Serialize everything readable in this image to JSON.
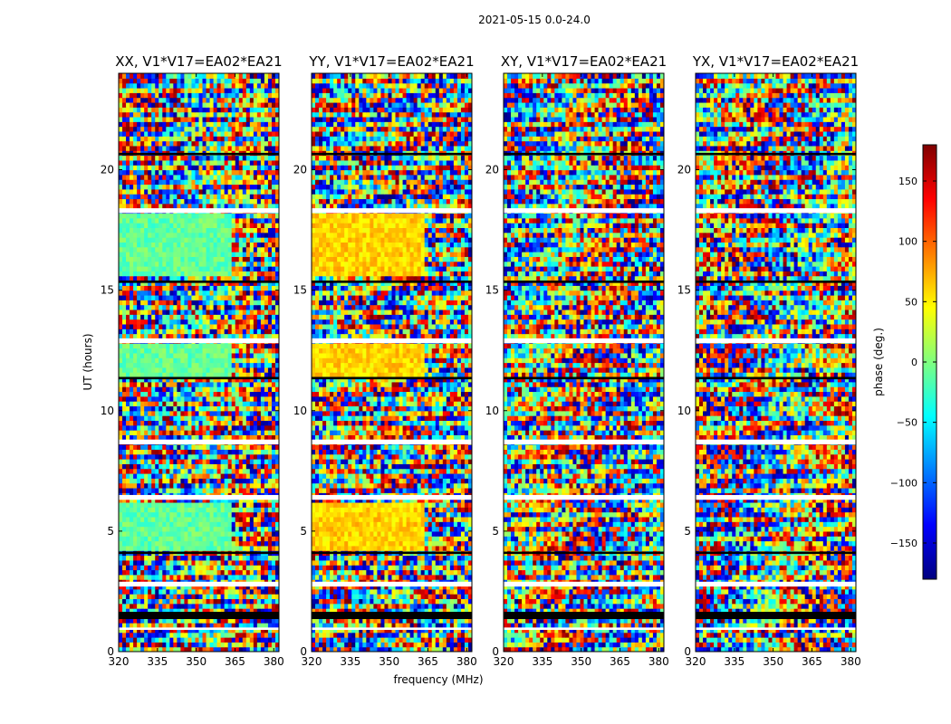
{
  "figure": {
    "suptitle": "2021-05-15 0.0-24.0",
    "ylabel": "UT (hours)",
    "xlabel": "frequency (MHz)"
  },
  "chart_data": {
    "type": "heatmap",
    "title": "2021-05-15 0.0-24.0",
    "xlabel": "frequency (MHz)",
    "ylabel": "UT (hours)",
    "xlim": [
      320,
      382
    ],
    "ylim": [
      0,
      24
    ],
    "x_ticks": [
      320,
      335,
      350,
      365,
      380
    ],
    "y_ticks": [
      0,
      5,
      10,
      15,
      20
    ],
    "colormap": "jet",
    "panels": [
      {
        "title": "XX, V1*V17=EA02*EA21",
        "polarization": "XX",
        "smooth_band_mhz": [
          320,
          363
        ],
        "smooth_phase_deg": -10
      },
      {
        "title": "YY, V1*V17=EA02*EA21",
        "polarization": "YY",
        "smooth_band_mhz": [
          320,
          363
        ],
        "smooth_phase_deg": 60
      },
      {
        "title": "XY, V1*V17=EA02*EA21",
        "polarization": "XY",
        "smooth_band_mhz": null,
        "smooth_phase_deg": null
      },
      {
        "title": "YX, V1*V17=EA02*EA21",
        "polarization": "YX",
        "smooth_band_mhz": null,
        "smooth_phase_deg": null
      }
    ],
    "flagged_ut_ranges_white": [
      [
        18.2,
        18.4
      ],
      [
        12.8,
        13.0
      ],
      [
        8.6,
        8.8
      ],
      [
        6.3,
        6.5
      ],
      [
        2.7,
        2.9
      ],
      [
        0.9,
        1.0
      ]
    ],
    "flagged_ut_ranges_black": [
      [
        1.35,
        1.65
      ],
      [
        4.05,
        4.15
      ],
      [
        11.3,
        11.4
      ],
      [
        15.3,
        15.4
      ],
      [
        20.6,
        20.7
      ]
    ],
    "colorbar": {
      "label": "phase (deg.)",
      "range": [
        -180,
        180
      ],
      "ticks": [
        -150,
        -100,
        -50,
        0,
        50,
        100,
        150
      ],
      "colors": [
        "#00007f",
        "#0000ff",
        "#007fff",
        "#00ffff",
        "#7fff7f",
        "#ffff00",
        "#ff7f00",
        "#ff0000",
        "#7f0000"
      ]
    }
  }
}
